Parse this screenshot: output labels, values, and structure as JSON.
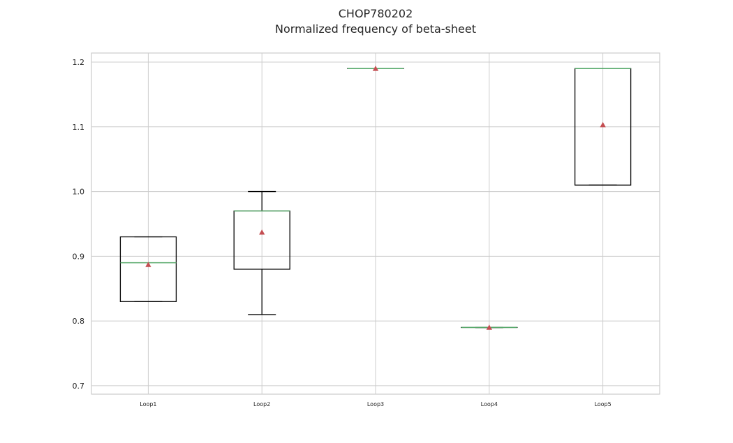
{
  "chart_data": {
    "type": "box",
    "title": "CHOP780202",
    "subtitle": "Normalized frequency of beta-sheet",
    "xlabel": "",
    "ylabel": "",
    "categories": [
      "Loop1",
      "Loop2",
      "Loop3",
      "Loop4",
      "Loop5"
    ],
    "boxes": [
      {
        "whisker_low": 0.83,
        "q1": 0.83,
        "median": 0.89,
        "q3": 0.93,
        "whisker_high": 0.93,
        "mean": 0.887
      },
      {
        "whisker_low": 0.81,
        "q1": 0.88,
        "median": 0.97,
        "q3": 0.97,
        "whisker_high": 1.0,
        "mean": 0.937
      },
      {
        "whisker_low": 1.19,
        "q1": 1.19,
        "median": 1.19,
        "q3": 1.19,
        "whisker_high": 1.19,
        "mean": 1.19
      },
      {
        "whisker_low": 0.79,
        "q1": 0.79,
        "median": 0.79,
        "q3": 0.79,
        "whisker_high": 0.79,
        "mean": 0.79
      },
      {
        "whisker_low": 1.01,
        "q1": 1.01,
        "median": 1.19,
        "q3": 1.19,
        "whisker_high": 1.19,
        "mean": 1.103
      }
    ],
    "yticks": [
      "0.7",
      "0.8",
      "0.9",
      "1.0",
      "1.1",
      "1.2"
    ],
    "ylim": [
      0.687,
      1.214
    ],
    "grid": true,
    "colors": {
      "box": "#000000",
      "median": "#55a868",
      "mean_marker": "#c44e52",
      "grid": "#cccccc",
      "frame": "#cccccc"
    }
  }
}
